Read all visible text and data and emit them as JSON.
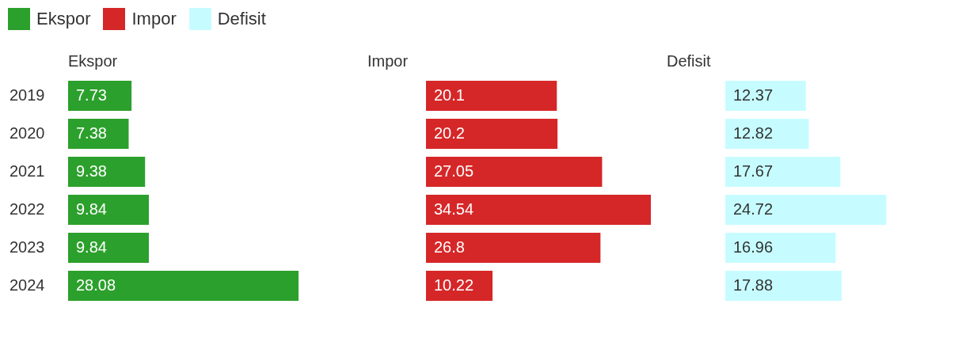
{
  "chart_data": [
    {
      "type": "bar",
      "orientation": "horizontal",
      "legend": "top left",
      "data_labels": true,
      "tick_labels": "y",
      "title": "Ekspor",
      "categories": [
        "2019",
        "2020",
        "2021",
        "2022",
        "2023",
        "2024"
      ],
      "series": [
        {
          "name": "Ekspor",
          "color": "#2ca02c",
          "values": [
            7.73,
            7.38,
            9.38,
            9.84,
            9.84,
            28.08
          ]
        }
      ]
    },
    {
      "type": "bar",
      "orientation": "horizontal",
      "legend": "top left",
      "data_labels": true,
      "tick_labels": false,
      "title": "Impor",
      "categories": [
        "2019",
        "2020",
        "2021",
        "2022",
        "2023",
        "2024"
      ],
      "series": [
        {
          "name": "Impor",
          "color": "#d62728",
          "values": [
            20.1,
            20.2,
            27.05,
            34.54,
            26.8,
            10.22
          ]
        }
      ]
    },
    {
      "type": "bar",
      "orientation": "horizontal",
      "legend": "top left",
      "data_labels": true,
      "tick_labels": false,
      "title": "Defisit",
      "categories": [
        "2019",
        "2020",
        "2021",
        "2022",
        "2023",
        "2024"
      ],
      "series": [
        {
          "name": "Defisit",
          "color": "#c6fcff",
          "values": [
            12.37,
            12.82,
            17.67,
            24.72,
            16.96,
            17.88
          ]
        }
      ]
    }
  ]
}
